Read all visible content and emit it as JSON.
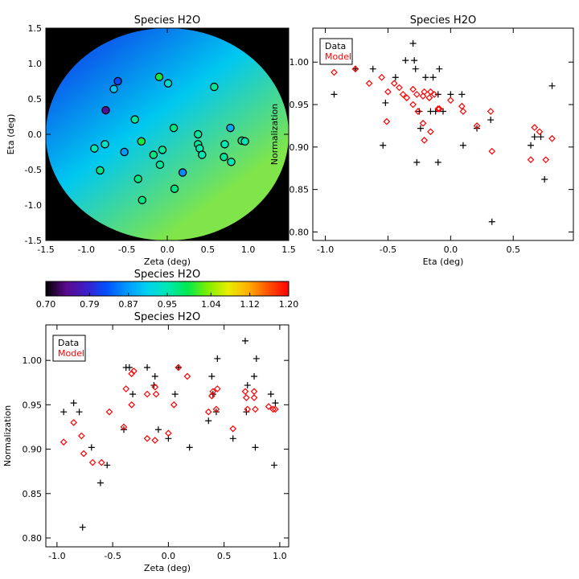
{
  "chart_data": [
    {
      "id": "map",
      "type": "heatmap",
      "title": "Species H2O",
      "xlabel": "Zeta (deg)",
      "ylabel": "Eta (deg)",
      "xlim": [
        -1.5,
        1.5
      ],
      "ylim": [
        -1.5,
        1.5
      ],
      "xticks": [
        "-1.5",
        "-1.0",
        "-0.5",
        "0.0",
        "0.5",
        "1.0",
        "1.5"
      ],
      "xtick_values": [
        -1.5,
        -1.0,
        -0.5,
        0.0,
        0.5,
        1.0,
        1.5
      ],
      "yticks": [
        "-1.5",
        "-1.0",
        "-0.5",
        "0.0",
        "0.5",
        "1.0",
        "1.5"
      ],
      "ytick_values": [
        -1.5,
        -1.0,
        -0.5,
        0.0,
        0.5,
        1.0,
        1.5
      ],
      "field_radius_deg": 1.5,
      "field_gradient": {
        "start_color": "#0a62ec",
        "end_color": "#7fe54a",
        "start_point": [
          -1.1,
          0.95
        ],
        "end_point": [
          0.3,
          -1.2
        ]
      },
      "points": [
        {
          "zeta": -0.61,
          "eta": 0.75,
          "value": 0.82
        },
        {
          "zeta": -0.66,
          "eta": 0.64,
          "value": 0.9
        },
        {
          "zeta": -0.76,
          "eta": 0.34,
          "value": 0.75
        },
        {
          "zeta": -0.1,
          "eta": 0.81,
          "value": 1.0
        },
        {
          "zeta": 0.01,
          "eta": 0.72,
          "value": 0.93
        },
        {
          "zeta": 0.58,
          "eta": 0.67,
          "value": 0.96
        },
        {
          "zeta": -0.4,
          "eta": 0.21,
          "value": 0.96
        },
        {
          "zeta": 0.08,
          "eta": 0.09,
          "value": 0.97
        },
        {
          "zeta": 0.78,
          "eta": 0.09,
          "value": 0.88
        },
        {
          "zeta": 0.38,
          "eta": 0.0,
          "value": 0.96
        },
        {
          "zeta": -0.9,
          "eta": -0.2,
          "value": 0.95
        },
        {
          "zeta": -0.77,
          "eta": -0.14,
          "value": 0.94
        },
        {
          "zeta": -0.32,
          "eta": -0.1,
          "value": 1.0
        },
        {
          "zeta": -0.53,
          "eta": -0.25,
          "value": 0.87
        },
        {
          "zeta": 0.38,
          "eta": -0.14,
          "value": 0.96
        },
        {
          "zeta": 0.4,
          "eta": -0.2,
          "value": 0.95
        },
        {
          "zeta": 0.43,
          "eta": -0.29,
          "value": 0.95
        },
        {
          "zeta": 0.71,
          "eta": -0.14,
          "value": 0.95
        },
        {
          "zeta": 0.92,
          "eta": -0.09,
          "value": 0.96
        },
        {
          "zeta": 0.96,
          "eta": -0.1,
          "value": 0.95
        },
        {
          "zeta": -0.06,
          "eta": -0.22,
          "value": 0.96
        },
        {
          "zeta": -0.17,
          "eta": -0.29,
          "value": 0.97
        },
        {
          "zeta": 0.7,
          "eta": -0.32,
          "value": 0.96
        },
        {
          "zeta": 0.79,
          "eta": -0.39,
          "value": 0.95
        },
        {
          "zeta": -0.09,
          "eta": -0.43,
          "value": 0.96
        },
        {
          "zeta": -0.83,
          "eta": -0.51,
          "value": 0.97
        },
        {
          "zeta": 0.19,
          "eta": -0.54,
          "value": 0.86
        },
        {
          "zeta": -0.36,
          "eta": -0.63,
          "value": 0.97
        },
        {
          "zeta": 0.09,
          "eta": -0.77,
          "value": 0.97
        },
        {
          "zeta": -0.31,
          "eta": -0.93,
          "value": 0.97
        }
      ]
    },
    {
      "id": "colorbar",
      "type": "colorbar",
      "title": "Species H2O",
      "range": [
        0.7,
        1.2
      ],
      "ticks": [
        "0.70",
        "0.79",
        "0.87",
        "0.95",
        "1.04",
        "1.12",
        "1.20"
      ],
      "tick_values": [
        0.7,
        0.79,
        0.87,
        0.95,
        1.04,
        1.12,
        1.2
      ],
      "colors": [
        "#000000",
        "#5a0a8c",
        "#3c1ec8",
        "#0050ff",
        "#0098ff",
        "#00d2f0",
        "#00e8b4",
        "#00e850",
        "#80ee00",
        "#e8ee00",
        "#ffb000",
        "#ff5000",
        "#ff0000"
      ]
    },
    {
      "id": "eta_plot",
      "type": "scatter",
      "title": "Species H2O",
      "xlabel": "Eta (deg)",
      "ylabel": "Normalization",
      "xlim": [
        -1.1,
        0.98
      ],
      "ylim": [
        0.79,
        1.04
      ],
      "xticks": [
        "-1.0",
        "-0.5",
        "0.0",
        "0.5"
      ],
      "xtick_values": [
        -1.0,
        -0.5,
        0.0,
        0.5
      ],
      "yticks": [
        "0.80",
        "0.85",
        "0.90",
        "0.95",
        "1.00"
      ],
      "ytick_values": [
        0.8,
        0.85,
        0.9,
        0.95,
        1.0
      ],
      "legend": {
        "entries": [
          "Data",
          "Model"
        ],
        "colors": [
          "#000000",
          "#ff0000"
        ],
        "position": "top-left"
      },
      "series": [
        {
          "name": "Data",
          "marker": "plus",
          "color": "#000000",
          "points": [
            [
              -0.93,
              0.962
            ],
            [
              -0.76,
              0.992
            ],
            [
              -0.62,
              0.992
            ],
            [
              -0.52,
              0.952
            ],
            [
              -0.54,
              0.902
            ],
            [
              -0.44,
              0.982
            ],
            [
              -0.36,
              1.002
            ],
            [
              -0.3,
              1.022
            ],
            [
              -0.29,
              1.002
            ],
            [
              -0.28,
              0.992
            ],
            [
              -0.25,
              0.942
            ],
            [
              -0.2,
              0.982
            ],
            [
              -0.16,
              0.942
            ],
            [
              -0.14,
              0.982
            ],
            [
              -0.12,
              0.942
            ],
            [
              -0.09,
              0.992
            ],
            [
              -0.1,
              0.962
            ],
            [
              -0.06,
              0.942
            ],
            [
              -0.24,
              0.922
            ],
            [
              -0.27,
              0.882
            ],
            [
              -0.1,
              0.882
            ],
            [
              0.0,
              0.962
            ],
            [
              0.09,
              0.962
            ],
            [
              0.1,
              0.902
            ],
            [
              0.21,
              0.922
            ],
            [
              0.32,
              0.932
            ],
            [
              0.33,
              0.812
            ],
            [
              0.64,
              0.902
            ],
            [
              0.67,
              0.912
            ],
            [
              0.72,
              0.912
            ],
            [
              0.75,
              0.862
            ],
            [
              0.81,
              0.972
            ]
          ]
        },
        {
          "name": "Model",
          "marker": "diamond",
          "color": "#ff0000",
          "points": [
            [
              -0.93,
              0.988
            ],
            [
              -0.76,
              0.992
            ],
            [
              -0.65,
              0.975
            ],
            [
              -0.55,
              0.982
            ],
            [
              -0.5,
              0.965
            ],
            [
              -0.45,
              0.975
            ],
            [
              -0.41,
              0.97
            ],
            [
              -0.38,
              0.962
            ],
            [
              -0.35,
              0.958
            ],
            [
              -0.3,
              0.968
            ],
            [
              -0.27,
              0.962
            ],
            [
              -0.22,
              0.96
            ],
            [
              -0.17,
              0.958
            ],
            [
              -0.13,
              0.962
            ],
            [
              -0.21,
              0.965
            ],
            [
              -0.16,
              0.965
            ],
            [
              -0.3,
              0.95
            ],
            [
              -0.51,
              0.93
            ],
            [
              -0.26,
              0.942
            ],
            [
              -0.22,
              0.928
            ],
            [
              -0.16,
              0.918
            ],
            [
              -0.21,
              0.908
            ],
            [
              -0.1,
              0.945
            ],
            [
              -0.09,
              0.945
            ],
            [
              0.0,
              0.955
            ],
            [
              0.09,
              0.948
            ],
            [
              0.1,
              0.942
            ],
            [
              0.21,
              0.925
            ],
            [
              0.32,
              0.942
            ],
            [
              0.33,
              0.895
            ],
            [
              0.64,
              0.885
            ],
            [
              0.67,
              0.923
            ],
            [
              0.71,
              0.918
            ],
            [
              0.76,
              0.885
            ],
            [
              0.81,
              0.91
            ]
          ]
        }
      ]
    },
    {
      "id": "zeta_plot",
      "type": "scatter",
      "title": "Species H2O",
      "xlabel": "Zeta (deg)",
      "ylabel": "Normalization",
      "xlim": [
        -1.1,
        1.08
      ],
      "ylim": [
        0.79,
        1.04
      ],
      "xticks": [
        "-1.0",
        "-0.5",
        "0.0",
        "0.5",
        "1.0"
      ],
      "xtick_values": [
        -1.0,
        -0.5,
        0.0,
        0.5,
        1.0
      ],
      "yticks": [
        "0.80",
        "0.85",
        "0.90",
        "0.95",
        "1.00"
      ],
      "ytick_values": [
        0.8,
        0.85,
        0.9,
        0.95,
        1.0
      ],
      "legend": {
        "entries": [
          "Data",
          "Model"
        ],
        "colors": [
          "#000000",
          "#ff0000"
        ],
        "position": "top-left"
      },
      "series": [
        {
          "name": "Data",
          "marker": "plus",
          "color": "#000000",
          "points": [
            [
              -0.94,
              0.942
            ],
            [
              -0.85,
              0.952
            ],
            [
              -0.8,
              0.942
            ],
            [
              -0.77,
              0.812
            ],
            [
              -0.69,
              0.902
            ],
            [
              -0.61,
              0.862
            ],
            [
              -0.55,
              0.882
            ],
            [
              -0.4,
              0.922
            ],
            [
              -0.38,
              0.992
            ],
            [
              -0.35,
              0.992
            ],
            [
              -0.32,
              0.962
            ],
            [
              -0.19,
              0.992
            ],
            [
              -0.12,
              0.982
            ],
            [
              -0.13,
              0.972
            ],
            [
              -0.09,
              0.922
            ],
            [
              0.0,
              0.912
            ],
            [
              0.06,
              0.962
            ],
            [
              0.09,
              0.992
            ],
            [
              0.19,
              0.902
            ],
            [
              0.36,
              0.932
            ],
            [
              0.39,
              0.982
            ],
            [
              0.4,
              0.962
            ],
            [
              0.43,
              0.942
            ],
            [
              0.44,
              1.002
            ],
            [
              0.58,
              0.912
            ],
            [
              0.69,
              1.022
            ],
            [
              0.7,
              0.942
            ],
            [
              0.71,
              0.972
            ],
            [
              0.77,
              0.982
            ],
            [
              0.78,
              0.902
            ],
            [
              0.79,
              1.002
            ],
            [
              0.92,
              0.962
            ],
            [
              0.96,
              0.952
            ],
            [
              0.95,
              0.882
            ]
          ]
        },
        {
          "name": "Model",
          "marker": "diamond",
          "color": "#ff0000",
          "points": [
            [
              -0.94,
              0.908
            ],
            [
              -0.85,
              0.93
            ],
            [
              -0.78,
              0.915
            ],
            [
              -0.76,
              0.895
            ],
            [
              -0.68,
              0.885
            ],
            [
              -0.6,
              0.885
            ],
            [
              -0.53,
              0.942
            ],
            [
              -0.4,
              0.925
            ],
            [
              -0.38,
              0.968
            ],
            [
              -0.33,
              0.985
            ],
            [
              -0.31,
              0.988
            ],
            [
              -0.33,
              0.95
            ],
            [
              -0.19,
              0.962
            ],
            [
              -0.11,
              0.962
            ],
            [
              -0.12,
              0.97
            ],
            [
              -0.12,
              0.91
            ],
            [
              -0.19,
              0.912
            ],
            [
              0.0,
              0.918
            ],
            [
              0.05,
              0.95
            ],
            [
              0.09,
              0.992
            ],
            [
              0.17,
              0.982
            ],
            [
              0.36,
              0.942
            ],
            [
              0.39,
              0.96
            ],
            [
              0.4,
              0.965
            ],
            [
              0.44,
              0.968
            ],
            [
              0.43,
              0.945
            ],
            [
              0.58,
              0.923
            ],
            [
              0.69,
              0.965
            ],
            [
              0.7,
              0.958
            ],
            [
              0.71,
              0.945
            ],
            [
              0.77,
              0.965
            ],
            [
              0.77,
              0.958
            ],
            [
              0.78,
              0.945
            ],
            [
              0.9,
              0.948
            ],
            [
              0.94,
              0.945
            ],
            [
              0.96,
              0.945
            ]
          ]
        }
      ]
    }
  ],
  "legend_labels": {
    "data": "Data",
    "model": "Model"
  }
}
